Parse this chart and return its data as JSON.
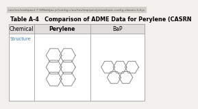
{
  "title": "Table A-4   Comparison of ADME Data for Perylene (CASRN",
  "url_text": "/usr/res/mathpac2.7.9/MathJax.js?config=/usr/res/tmp/pics/js/mathpac-config-classes.3.4.js",
  "col_headers": [
    "Chemical",
    "Perylene",
    "BaP"
  ],
  "row1_label": "Structure",
  "bg_color": "#f2f0ed",
  "table_bg": "#ffffff",
  "url_bar_color": "#d0ccc7",
  "border_color": "#999999",
  "header_bg": "#e0dedd",
  "title_fontsize": 5.8,
  "header_fontsize": 5.5,
  "cell_fontsize": 4.8,
  "url_fontsize": 3.2,
  "fig_width": 2.04,
  "fig_height": 1.39
}
